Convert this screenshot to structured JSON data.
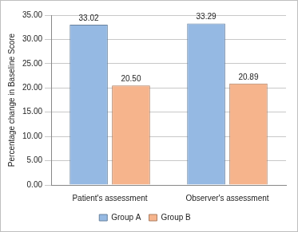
{
  "chart_data": {
    "type": "bar",
    "y_label": "Percentage change in Baseline Score",
    "categories": [
      "Patient's assessment",
      "Observer's assessment"
    ],
    "series": [
      {
        "name": "Group A",
        "color": "#95b9e3",
        "values": [
          33.02,
          33.29
        ],
        "value_labels": [
          "33.02",
          "33.29"
        ]
      },
      {
        "name": "Group B",
        "color": "#f6b48c",
        "values": [
          20.5,
          20.89
        ],
        "value_labels": [
          "20.50",
          "20.89"
        ]
      }
    ],
    "ylim": [
      0,
      35
    ],
    "yticks": [
      {
        "value": 0,
        "label": "0.00"
      },
      {
        "value": 5,
        "label": "5.00"
      },
      {
        "value": 10,
        "label": "10.00"
      },
      {
        "value": 15,
        "label": "15.00"
      },
      {
        "value": 20,
        "label": "20.00"
      },
      {
        "value": 25,
        "label": "25.00"
      },
      {
        "value": 30,
        "label": "30.00"
      },
      {
        "value": 35,
        "label": "35.00"
      }
    ],
    "grid": true,
    "legend": "bottom",
    "data_labels": true
  }
}
